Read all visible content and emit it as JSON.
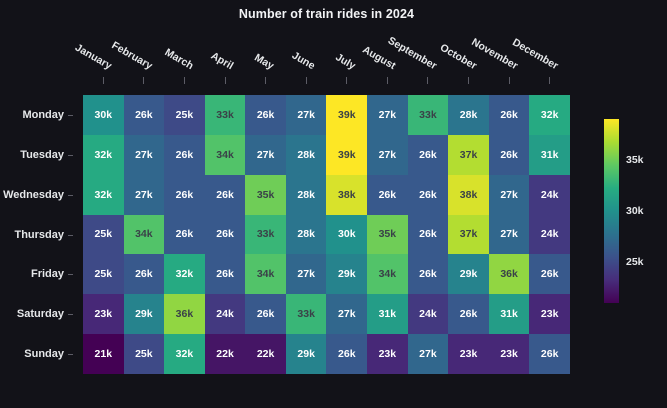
{
  "title": "Number of train rides in 2024",
  "chart_data": {
    "type": "heatmap",
    "title": "Number of train rides in 2024",
    "x_categories": [
      "January",
      "February",
      "March",
      "April",
      "May",
      "June",
      "July",
      "August",
      "September",
      "October",
      "November",
      "December"
    ],
    "y_categories": [
      "Monday",
      "Tuesday",
      "Wednesday",
      "Thursday",
      "Friday",
      "Saturday",
      "Sunday"
    ],
    "unit_suffix": "k",
    "values_thousands": [
      [
        30,
        26,
        25,
        33,
        26,
        27,
        39,
        27,
        33,
        28,
        26,
        32
      ],
      [
        32,
        27,
        26,
        34,
        27,
        28,
        39,
        27,
        26,
        37,
        26,
        31
      ],
      [
        32,
        27,
        26,
        26,
        35,
        28,
        38,
        26,
        26,
        38,
        27,
        24
      ],
      [
        25,
        34,
        26,
        26,
        33,
        28,
        30,
        35,
        26,
        37,
        27,
        24
      ],
      [
        25,
        26,
        32,
        26,
        34,
        27,
        29,
        34,
        26,
        29,
        36,
        26
      ],
      [
        23,
        29,
        36,
        24,
        26,
        33,
        27,
        31,
        24,
        26,
        31,
        23
      ],
      [
        21,
        25,
        32,
        22,
        22,
        29,
        26,
        23,
        27,
        23,
        23,
        26
      ]
    ],
    "vmin_thousands": 21,
    "vmax_thousands": 39,
    "colormap": "viridis",
    "colorbar": {
      "position": "right",
      "tick_labels": [
        "35k",
        "30k",
        "25k"
      ],
      "tick_values": [
        35,
        30,
        25
      ]
    },
    "colors": {
      "background": "#121218",
      "title_text": "#f2f3f5",
      "axis_text": "#e6e8ea",
      "tick_mark": "#5c5c66",
      "cell_text_light": "#ffffff",
      "cell_text_dark": "#3a4148",
      "dark_text_threshold_thousands": 33,
      "viridis_stops": [
        "#440154",
        "#472d7b",
        "#3b528b",
        "#2c728e",
        "#21918c",
        "#27ad81",
        "#5ec962",
        "#aadc32",
        "#fde725"
      ]
    }
  }
}
